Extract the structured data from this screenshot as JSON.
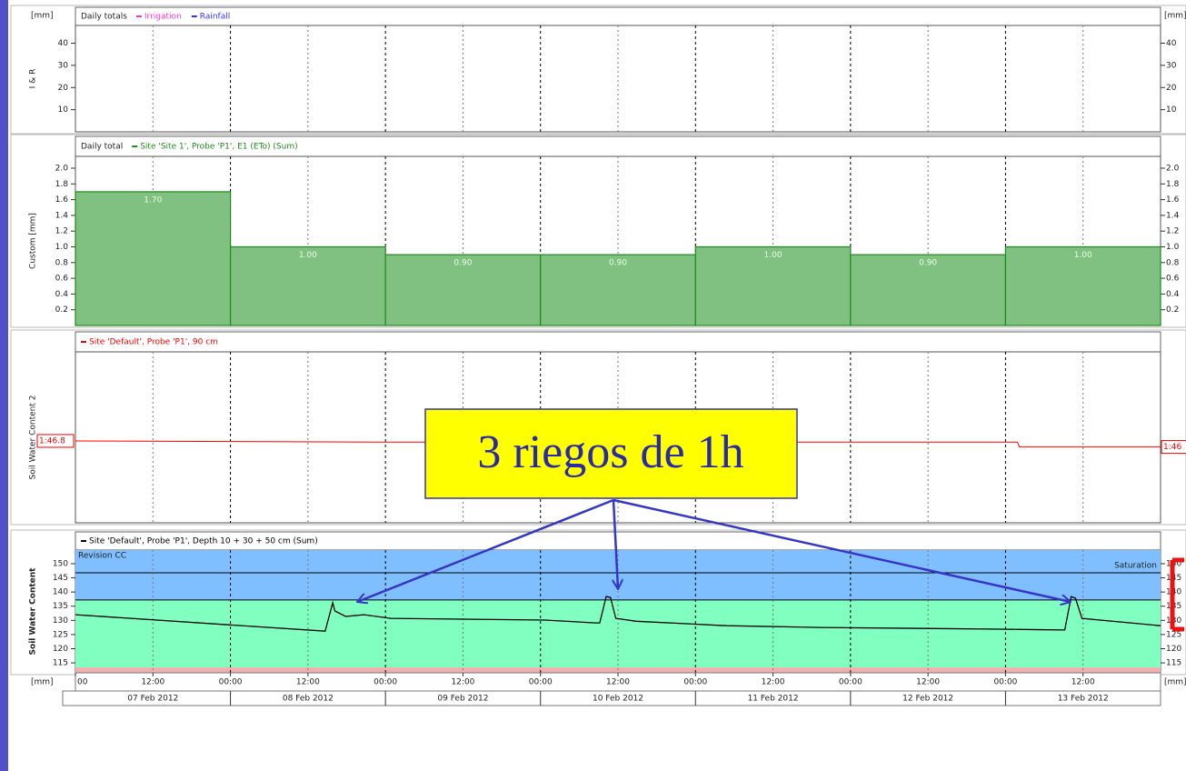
{
  "chart_data": [
    {
      "type": "bar",
      "title": "Daily totals",
      "ylabel": "I & R",
      "unit_left": "[mm]",
      "unit_right": "[mm]",
      "series": [
        {
          "name": "Irrigation",
          "color": "#ff33cc"
        },
        {
          "name": "Rainfall",
          "color": "#3333ff"
        }
      ],
      "ylim": [
        0,
        48
      ],
      "yticks": [
        10,
        20,
        30,
        40
      ],
      "grid": true
    },
    {
      "type": "bar",
      "title": "Daily total",
      "ylabel": "Custom [mm]",
      "series": [
        {
          "name": "Site 'Site 1', Probe 'P1', E1 (ETo) (Sum)",
          "color": "#80c080",
          "edge": "#1f8a1f",
          "x": [
            "2012-02-07T00:00",
            "2012-02-08T00:00",
            "2012-02-09T00:00",
            "2012-02-10T00:00",
            "2012-02-11T00:00",
            "2012-02-12T00:00",
            "2012-02-13T00:00"
          ],
          "values": [
            1.7,
            1,
            0.9,
            0.9,
            1,
            0.9,
            1
          ],
          "value_labels": [
            "1.70",
            "1.00",
            "0.90",
            "0.90",
            "1.00",
            "0.90",
            "1.00"
          ]
        }
      ],
      "ylim": [
        0,
        2.15
      ],
      "yticks": [
        0.2,
        0.4,
        0.6,
        0.8,
        {
          "value": 1,
          "label": "1.0"
        },
        1.2,
        1.4,
        1.6,
        1.8,
        {
          "value": 2,
          "label": "2.0"
        }
      ],
      "grid": true
    },
    {
      "type": "line",
      "ylabel": "Soil Water Content 2",
      "series": [
        {
          "name": "Site 'Default', Probe 'P1', 90 cm",
          "color": "#ff0000",
          "x": [
            "2012-02-07T00:00",
            "2012-02-09T00:00",
            "2012-02-13T01:50",
            "2012-02-13T02:10",
            "2012-02-14T00:00"
          ],
          "values": [
            46.8,
            46.7,
            46.7,
            46.3,
            46.3
          ]
        }
      ],
      "ylim": [
        40,
        54.2
      ],
      "left_label": "1:46.8",
      "right_label": "1:46",
      "grid": true
    },
    {
      "type": "line",
      "ylabel": "Soil Water Content",
      "series": [
        {
          "name": "Site 'Default', Probe 'P1', Depth 10 + 30 + 50 cm (Sum)",
          "color": "#000000",
          "x": [
            "2012-02-07T00:00",
            "2012-02-08T14:40",
            "2012-02-08T15:50",
            "2012-02-08T16:10",
            "2012-02-08T17:50",
            "2012-02-08T20:40",
            "2012-02-09T00:50",
            "2012-02-10T00:40",
            "2012-02-10T08:30",
            "2012-02-10T09:10",
            "2012-02-10T10:10",
            "2012-02-10T10:50",
            "2012-02-10T11:40",
            "2012-02-10T14:50",
            "2012-02-11T04:50",
            "2012-02-11T19:00",
            "2012-02-12T23:10",
            "2012-02-13T09:10",
            "2012-02-13T10:10",
            "2012-02-13T10:50",
            "2012-02-13T11:50",
            "2012-02-14T00:00"
          ],
          "values": [
            132.0,
            126.2,
            136.2,
            133.3,
            131.4,
            132.0,
            130.7,
            130.1,
            129.1,
            129.1,
            138.4,
            138.1,
            130.7,
            129.7,
            128.1,
            127.5,
            126.9,
            126.6,
            138.4,
            137.8,
            130.7,
            128.1
          ]
        }
      ],
      "ylim": [
        111.5,
        154.8
      ],
      "yticks": [
        115,
        120,
        125,
        130,
        135,
        140,
        145,
        150
      ],
      "grid": true,
      "bands": [
        {
          "from": 137.2,
          "to": 154.8,
          "color": "#80bfff"
        },
        {
          "from": 113.4,
          "to": 137.2,
          "color": "#80ffc0"
        },
        {
          "from": 111.5,
          "to": 113.4,
          "color": "#f0b0b0"
        }
      ],
      "reference_lines": [
        146.8,
        137.2
      ],
      "band_labels": [
        "Revision CC",
        "Saturation"
      ],
      "xlim": [
        "2012-02-07T00:00",
        "2012-02-14T00:00"
      ],
      "xticks": [
        {
          "value": "2012-02-07T00:00",
          "label": "00"
        },
        {
          "value": "2012-02-07T12:00",
          "label": "12:00"
        },
        {
          "value": "2012-02-08T00:00",
          "label": "00:00"
        },
        {
          "value": "2012-02-08T12:00",
          "label": "12:00"
        },
        {
          "value": "2012-02-09T00:00",
          "label": "00:00"
        },
        {
          "value": "2012-02-09T12:00",
          "label": "12:00"
        },
        {
          "value": "2012-02-10T00:00",
          "label": "00:00"
        },
        {
          "value": "2012-02-10T12:00",
          "label": "12:00"
        },
        {
          "value": "2012-02-11T00:00",
          "label": "00:00"
        },
        {
          "value": "2012-02-11T12:00",
          "label": "12:00"
        },
        {
          "value": "2012-02-12T00:00",
          "label": "00:00"
        },
        {
          "value": "2012-02-12T12:00",
          "label": "12:00"
        },
        {
          "value": "2012-02-13T00:00",
          "label": "00:00"
        },
        {
          "value": "2012-02-13T12:00",
          "label": "12:00"
        }
      ],
      "x_unit_left": "[mm]",
      "x_unit_right": "[mm]",
      "date_labels": [
        "07 Feb 2012",
        "08 Feb 2012",
        "09 Feb 2012",
        "10 Feb 2012",
        "11 Feb 2012",
        "12 Feb 2012",
        "13 Feb 2012"
      ],
      "annotation": "3 riegos de 1h"
    }
  ]
}
